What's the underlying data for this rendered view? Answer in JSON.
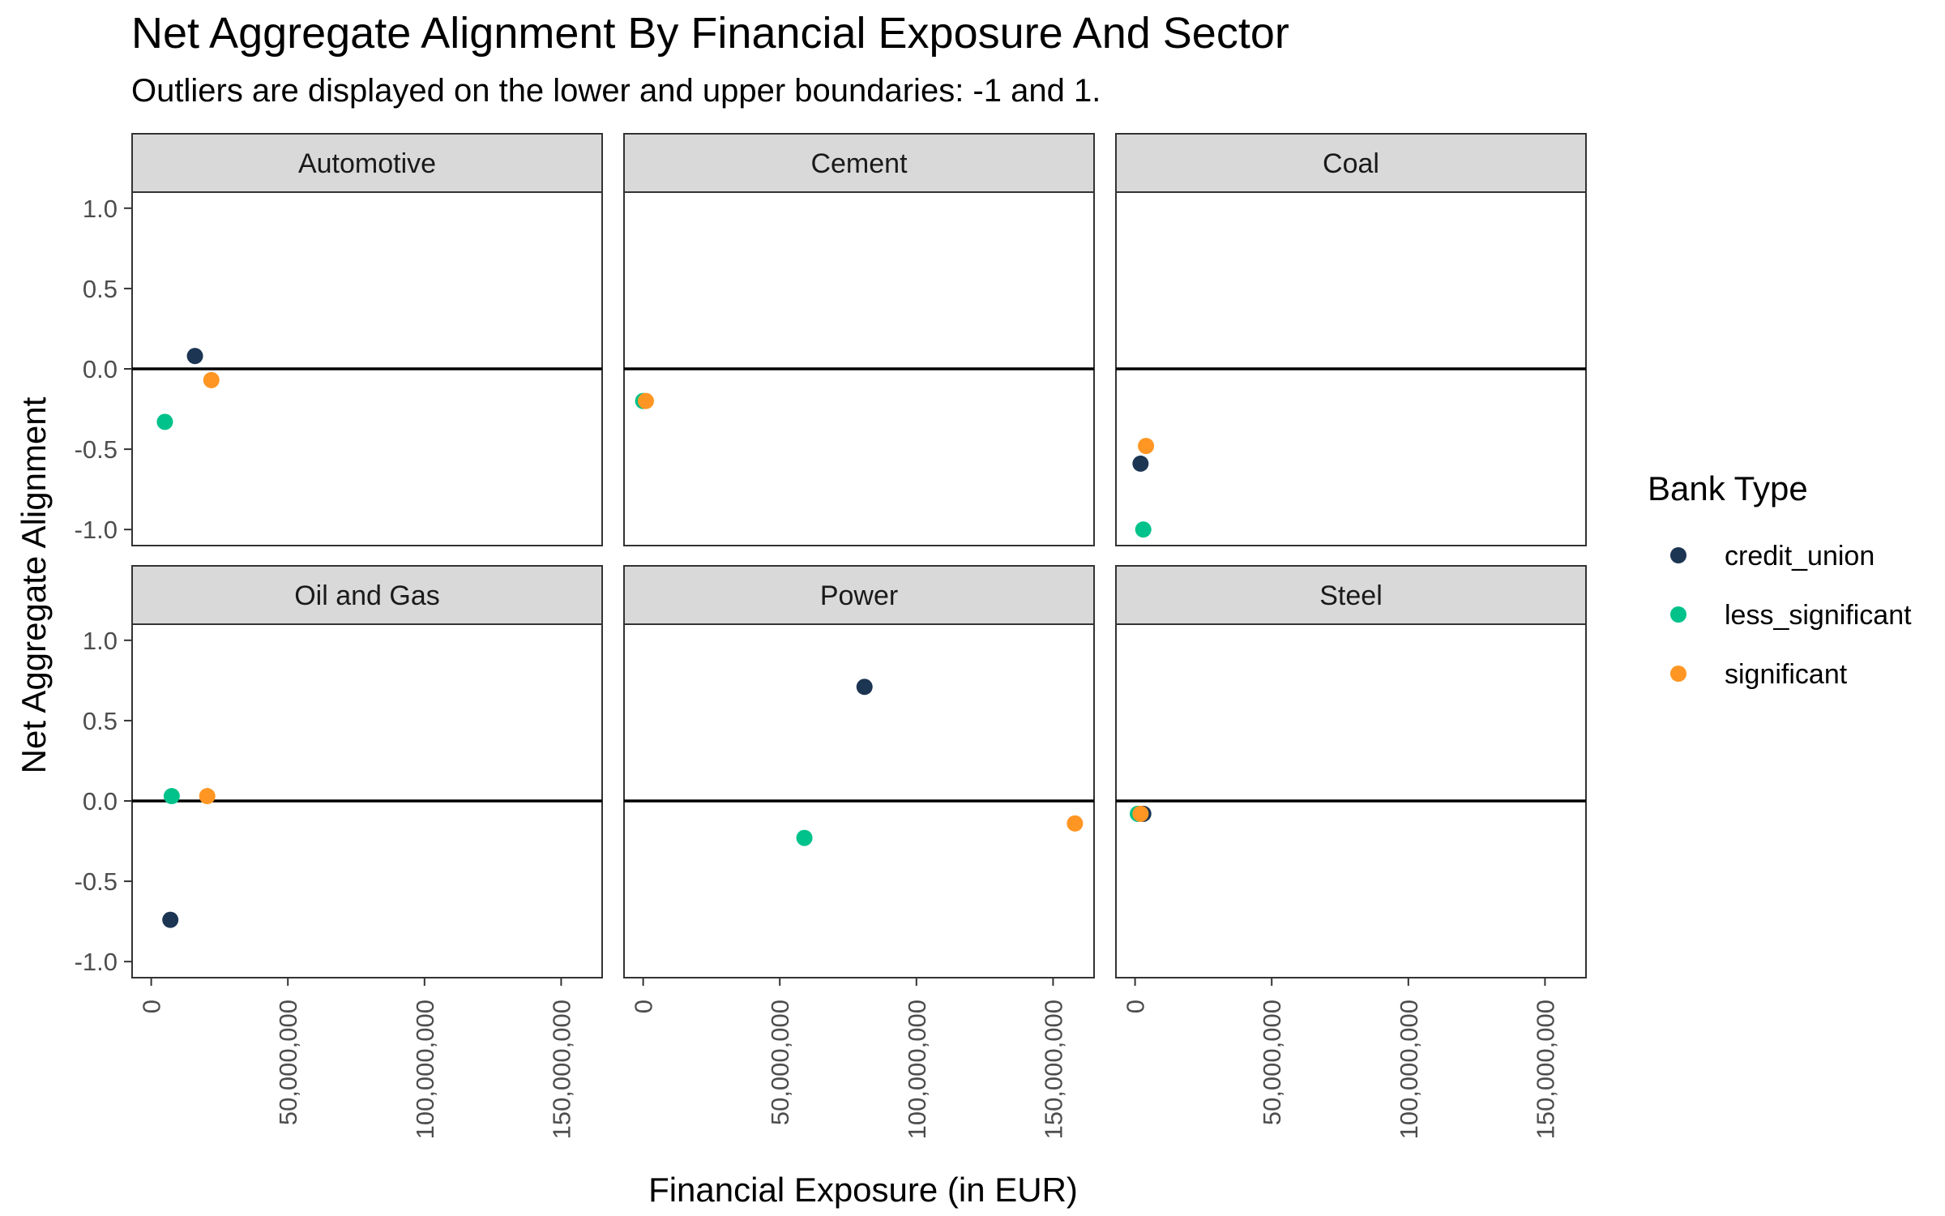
{
  "chart_data": {
    "type": "scatter",
    "title": "Net Aggregate Alignment By Financial Exposure And Sector",
    "subtitle": "Outliers are displayed on the lower and upper boundaries: -1 and 1.",
    "xlabel": "Financial Exposure (in EUR)",
    "ylabel": "Net Aggregate Alignment",
    "xlim": [
      -7000000,
      165000000
    ],
    "ylim": [
      -1.1,
      1.1
    ],
    "x_ticks": [
      0,
      50000000,
      100000000,
      150000000
    ],
    "x_tick_labels": [
      "0",
      "50,000,000",
      "100,000,000",
      "150,000,000"
    ],
    "y_ticks": [
      1.0,
      0.5,
      0.0,
      -0.5,
      -1.0
    ],
    "y_tick_labels": [
      "1.0",
      "0.5",
      "0.0",
      "-0.5",
      "-1.0"
    ],
    "reference_line_y": 0,
    "grid": false,
    "legend": {
      "title": "Bank Type",
      "position": "right",
      "entries": [
        {
          "name": "credit_union",
          "color": "#1c3553"
        },
        {
          "name": "less_significant",
          "color": "#00c28a"
        },
        {
          "name": "significant",
          "color": "#ff9623"
        }
      ]
    },
    "facets": [
      {
        "label": "Automotive",
        "points": [
          {
            "series": "credit_union",
            "x": 16000000,
            "y": 0.08
          },
          {
            "series": "less_significant",
            "x": 5000000,
            "y": -0.33
          },
          {
            "series": "significant",
            "x": 22000000,
            "y": -0.07
          }
        ]
      },
      {
        "label": "Cement",
        "points": [
          {
            "series": "less_significant",
            "x": 0,
            "y": -0.2
          },
          {
            "series": "significant",
            "x": 1000000,
            "y": -0.2
          }
        ]
      },
      {
        "label": "Coal",
        "points": [
          {
            "series": "credit_union",
            "x": 2000000,
            "y": -0.59
          },
          {
            "series": "less_significant",
            "x": 3000000,
            "y": -1.0
          },
          {
            "series": "significant",
            "x": 4000000,
            "y": -0.48
          }
        ]
      },
      {
        "label": "Oil and Gas",
        "points": [
          {
            "series": "credit_union",
            "x": 7000000,
            "y": -0.74
          },
          {
            "series": "less_significant",
            "x": 7500000,
            "y": 0.03
          },
          {
            "series": "significant",
            "x": 20500000,
            "y": 0.03
          }
        ]
      },
      {
        "label": "Power",
        "points": [
          {
            "series": "credit_union",
            "x": 81000000,
            "y": 0.71
          },
          {
            "series": "less_significant",
            "x": 59000000,
            "y": -0.23
          },
          {
            "series": "significant",
            "x": 158000000,
            "y": -0.14
          }
        ]
      },
      {
        "label": "Steel",
        "points": [
          {
            "series": "credit_union",
            "x": 3000000,
            "y": -0.08
          },
          {
            "series": "less_significant",
            "x": 1000000,
            "y": -0.08
          },
          {
            "series": "significant",
            "x": 2000000,
            "y": -0.08
          }
        ]
      }
    ]
  }
}
